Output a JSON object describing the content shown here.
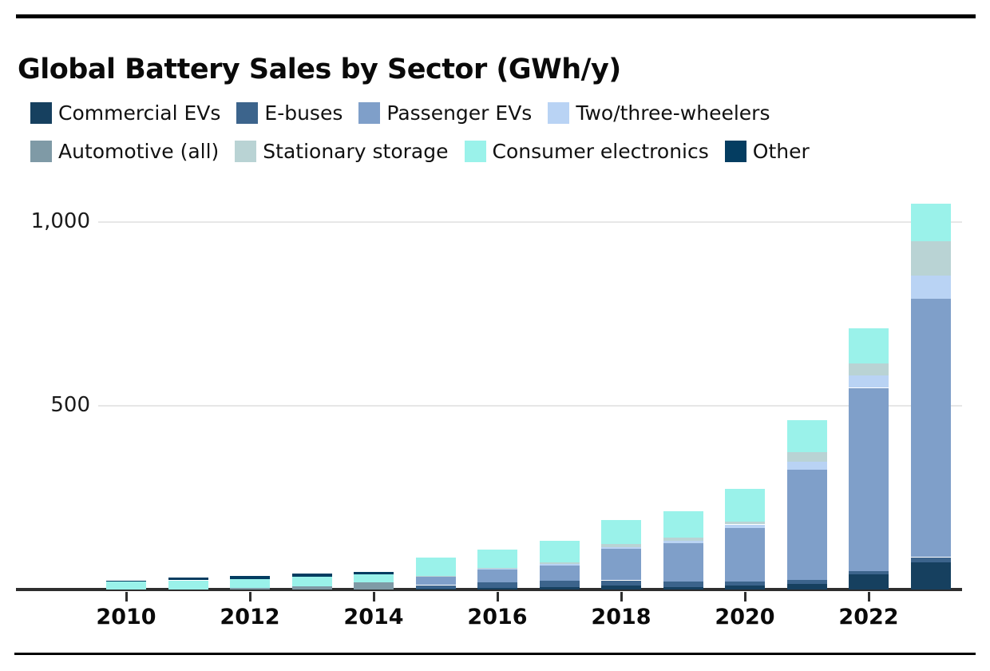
{
  "page": {
    "background": "#ffffff",
    "rule_color": "#000000",
    "text_color": "#111111"
  },
  "chart_data": {
    "type": "bar",
    "stacked": true,
    "title": "Global Battery Sales by Sector (GWh/y)",
    "unit": "GWh/y",
    "grid": "horizontal-lines",
    "legend_position": "top",
    "categories": [
      2010,
      2011,
      2012,
      2013,
      2014,
      2015,
      2016,
      2017,
      2018,
      2019,
      2020,
      2021,
      2022,
      2023
    ],
    "series": [
      {
        "name": "Commercial EVs",
        "color": "#16405f",
        "values": [
          0,
          0,
          0,
          0,
          0,
          3,
          5,
          6,
          10,
          7,
          10,
          16,
          41,
          75
        ]
      },
      {
        "name": "E-buses",
        "color": "#3c648c",
        "values": [
          0,
          0,
          0,
          0,
          0,
          9,
          15,
          17,
          15,
          15,
          12,
          11,
          9,
          13
        ]
      },
      {
        "name": "Passenger EVs",
        "color": "#7f9fc9",
        "values": [
          0,
          0,
          0,
          0,
          0,
          24,
          34,
          43,
          85,
          104,
          145,
          300,
          499,
          704
        ]
      },
      {
        "name": "Two/three-wheelers",
        "color": "#b9d3f4",
        "values": [
          0,
          0,
          0,
          0,
          0,
          1,
          2,
          4,
          6,
          7,
          10,
          22,
          33,
          62
        ]
      },
      {
        "name": "Automotive (all)",
        "color": "#7f9aa6",
        "values": [
          0,
          0,
          5,
          9,
          19,
          0,
          0,
          0,
          0,
          0,
          0,
          0,
          0,
          0
        ]
      },
      {
        "name": "Stationary storage",
        "color": "#b9d3d4",
        "values": [
          0,
          0,
          0,
          0,
          0,
          1,
          2,
          3,
          7,
          9,
          9,
          25,
          34,
          94
        ]
      },
      {
        "name": "Consumer electronics",
        "color": "#9af2ea",
        "values": [
          21,
          25,
          23,
          26,
          22,
          50,
          50,
          60,
          67,
          72,
          88,
          88,
          96,
          102
        ]
      },
      {
        "name": "Other",
        "color": "#043d61",
        "values": [
          4,
          8,
          8,
          8,
          7,
          0,
          0,
          0,
          0,
          0,
          0,
          0,
          0,
          0
        ]
      }
    ],
    "stack_order_bottom_to_top": [
      "Commercial EVs",
      "E-buses",
      "Passenger EVs",
      "Two/three-wheelers",
      "Automotive (all)",
      "Stationary storage",
      "Consumer electronics",
      "Other"
    ],
    "totals_by_year": [
      25,
      33,
      36,
      43,
      48,
      88,
      108,
      133,
      190,
      214,
      274,
      462,
      712,
      1050
    ],
    "y_ticks": [
      {
        "value": 500,
        "label": "500"
      },
      {
        "value": 1000,
        "label": "1,000"
      }
    ],
    "x_tick_years": [
      2010,
      2012,
      2014,
      2016,
      2018,
      2020,
      2022
    ],
    "ylim": [
      0,
      1070
    ],
    "xlabel": "",
    "ylabel": ""
  }
}
